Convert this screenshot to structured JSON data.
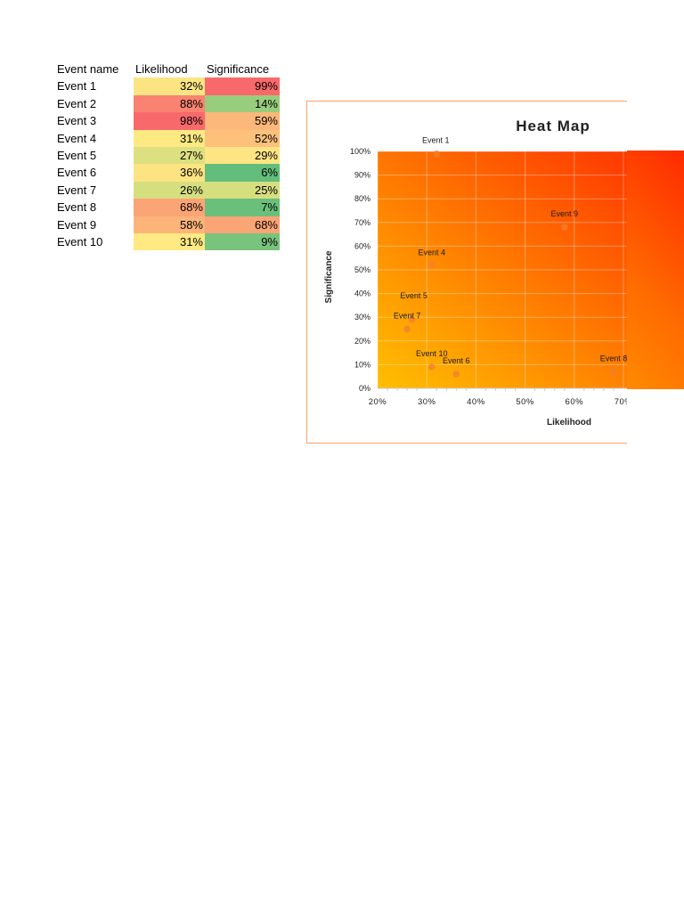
{
  "table": {
    "headers": [
      "Event name",
      "Likelihood",
      "Significance"
    ],
    "rows": [
      {
        "name": "Event 1",
        "likelihood": "32%",
        "significance": "99%",
        "l_color": "#fbe583",
        "s_color": "#f8696b"
      },
      {
        "name": "Event 2",
        "likelihood": "88%",
        "significance": "14%",
        "l_color": "#f98370",
        "s_color": "#98cd7e"
      },
      {
        "name": "Event 3",
        "likelihood": "98%",
        "significance": "59%",
        "l_color": "#f8696b",
        "s_color": "#fcb77a"
      },
      {
        "name": "Event 4",
        "likelihood": "31%",
        "significance": "52%",
        "l_color": "#fee983",
        "s_color": "#fdc17c"
      },
      {
        "name": "Event 5",
        "likelihood": "27%",
        "significance": "29%",
        "l_color": "#dde081",
        "s_color": "#fee482"
      },
      {
        "name": "Event 6",
        "likelihood": "36%",
        "significance": "6%",
        "l_color": "#fee382",
        "s_color": "#63be7b"
      },
      {
        "name": "Event 7",
        "likelihood": "26%",
        "significance": "25%",
        "l_color": "#d6df80",
        "s_color": "#d6df80"
      },
      {
        "name": "Event 8",
        "likelihood": "68%",
        "significance": "7%",
        "l_color": "#fba476",
        "s_color": "#6ac07b"
      },
      {
        "name": "Event 9",
        "likelihood": "58%",
        "significance": "68%",
        "l_color": "#fcb479",
        "s_color": "#fba476"
      },
      {
        "name": "Event 10",
        "likelihood": "31%",
        "significance": "9%",
        "l_color": "#fee983",
        "s_color": "#79c47c"
      }
    ]
  },
  "chart_data": {
    "type": "scatter",
    "title": "Heat Map",
    "xlabel": "Likelihood",
    "ylabel": "Significance",
    "xlim": [
      0.2,
      0.7
    ],
    "ylim": [
      0,
      1
    ],
    "x_ticks": [
      "20%",
      "30%",
      "40%",
      "50%",
      "60%",
      "70%"
    ],
    "y_ticks": [
      "0%",
      "10%",
      "20%",
      "30%",
      "40%",
      "50%",
      "60%",
      "70%",
      "80%",
      "90%",
      "100%"
    ],
    "grid": true,
    "points": [
      {
        "label": "Event 1",
        "x": 0.32,
        "y": 0.99
      },
      {
        "label": "Event 4",
        "x": 0.31,
        "y": 0.52
      },
      {
        "label": "Event 5",
        "x": 0.27,
        "y": 0.29
      },
      {
        "label": "Event 6",
        "x": 0.36,
        "y": 0.06
      },
      {
        "label": "Event 7",
        "x": 0.26,
        "y": 0.25
      },
      {
        "label": "Event 8",
        "x": 0.68,
        "y": 0.07
      },
      {
        "label": "Event 9",
        "x": 0.58,
        "y": 0.68
      },
      {
        "label": "Event 10",
        "x": 0.31,
        "y": 0.09
      }
    ],
    "colors": {
      "gradient_low": "#ffbf00",
      "gradient_high": "#ff2a00",
      "marker": "#f08030",
      "border": "#f4a46a"
    }
  }
}
